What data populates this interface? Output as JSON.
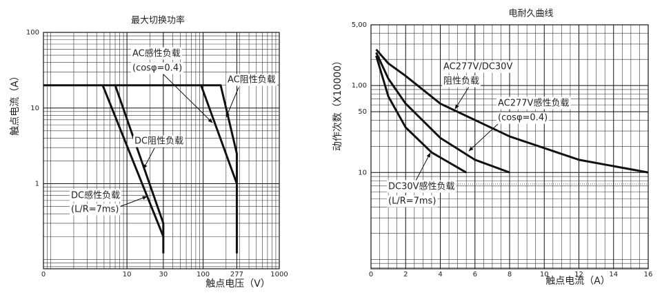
{
  "chart_data": [
    {
      "type": "line",
      "title": "最大切换功率",
      "xlabel": "触点电压（V）",
      "ylabel": "触点电流（A）",
      "xscale": "log",
      "yscale": "log",
      "xlim": [
        0.8,
        1000
      ],
      "ylim": [
        0.075,
        100
      ],
      "x_origin_label": "0",
      "xticks": [
        10,
        30,
        100,
        277,
        1000
      ],
      "yticks": [
        1,
        10,
        100
      ],
      "grid": true,
      "minor_grid": true,
      "series": [
        {
          "color": "#111111",
          "x": [
            0.8,
            170,
            277,
            277
          ],
          "values": [
            20,
            20,
            2.5,
            0.12
          ]
        },
        {
          "color": "#111111",
          "x": [
            94,
            277
          ],
          "values": [
            20,
            1
          ]
        },
        {
          "color": "#111111",
          "x": [
            7,
            30,
            30
          ],
          "values": [
            20,
            0.3,
            0.12
          ]
        },
        {
          "color": "#111111",
          "x": [
            4.8,
            30
          ],
          "values": [
            20,
            0.2
          ]
        }
      ],
      "annotations": [
        "AC感性负载",
        "(cosφ=0.4)",
        "AC阻性负载",
        "DC阻性负载",
        "DC感性负载",
        "(L/R=7ms)"
      ]
    },
    {
      "type": "line",
      "title": "电耐久曲线",
      "xlabel": "触点电流（A）",
      "ylabel": "动作次数（X10000）",
      "xscale": "linear",
      "yscale": "log",
      "xlim": [
        0,
        16
      ],
      "ylim": [
        0.78,
        500
      ],
      "xticks": [
        0,
        2,
        4,
        6,
        8,
        10,
        12,
        14,
        16
      ],
      "yticks": [
        10,
        50,
        {
          "value": 100,
          "label": "1,00"
        },
        {
          "value": 500,
          "label": "5,00"
        }
      ],
      "grid": true,
      "minor_grid": true,
      "series": [
        {
          "color": "#111111",
          "x": [
            0.3,
            1,
            2,
            4,
            8,
            12,
            16
          ],
          "values": [
            260,
            180,
            129,
            62,
            26,
            14,
            10
          ]
        },
        {
          "color": "#111111",
          "x": [
            0.3,
            1,
            2,
            4,
            6,
            8
          ],
          "values": [
            240,
            120,
            62,
            25,
            14,
            10
          ]
        },
        {
          "color": "#111111",
          "x": [
            0.3,
            1,
            2,
            3.5,
            5.5
          ],
          "values": [
            220,
            75,
            33,
            17,
            10
          ]
        }
      ],
      "annotations": [
        "AC277V/DC30V",
        "阻性负载",
        "AC277V感性负载",
        "(cosφ=0.4)",
        "DC30V感性负载",
        "(L/R=7ms)"
      ]
    }
  ]
}
